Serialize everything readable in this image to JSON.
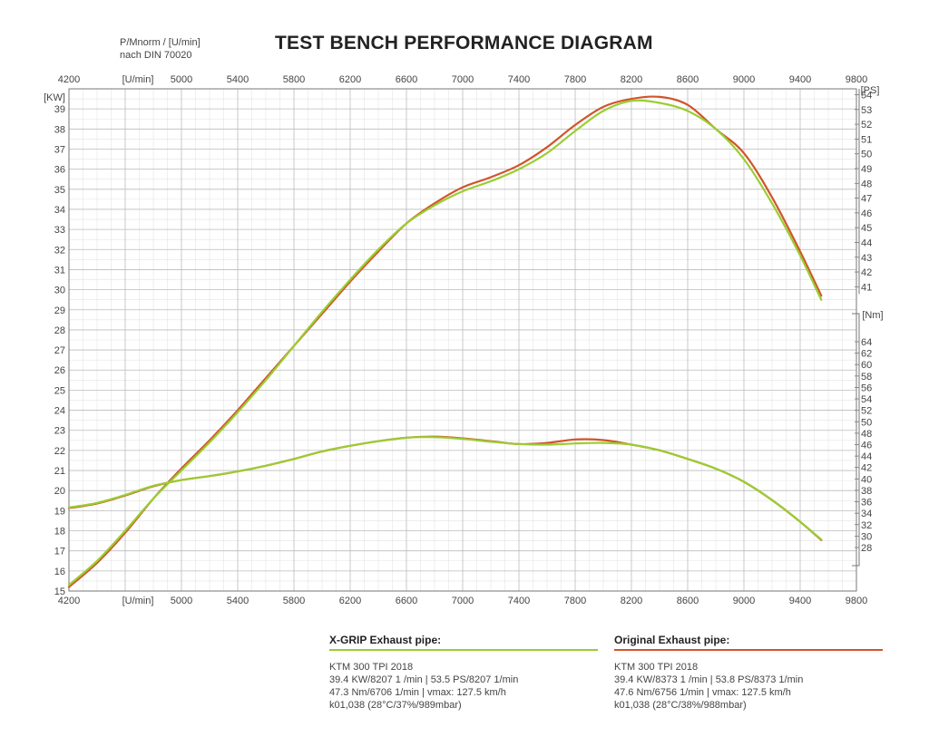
{
  "header": {
    "title": "TEST BENCH PERFORMANCE DIAGRAM",
    "unit_line1": "P/Mnorm / [U/min]",
    "unit_line2": "nach DIN 70020"
  },
  "colors": {
    "xgrip": "#9ACD32",
    "original": "#D2542A",
    "grid": "#BBBBBB",
    "frame": "#777777"
  },
  "chart_data": {
    "type": "line",
    "title": "TEST BENCH PERFORMANCE DIAGRAM",
    "xlabel": "[U/min]",
    "x_ticks": [
      4200,
      5000,
      5400,
      5800,
      6200,
      6600,
      7000,
      7400,
      7800,
      8200,
      8600,
      9000,
      9400,
      9800
    ],
    "xlim": [
      4200,
      9800
    ],
    "y_left": {
      "label": "[KW]",
      "ylim": [
        15,
        40
      ],
      "ticks": [
        15,
        16,
        17,
        18,
        19,
        20,
        21,
        22,
        23,
        24,
        25,
        26,
        27,
        28,
        29,
        30,
        31,
        32,
        33,
        34,
        35,
        36,
        37,
        38,
        39
      ]
    },
    "y_right_ps": {
      "label": "[PS]",
      "ticks": [
        41,
        42,
        43,
        44,
        45,
        46,
        47,
        48,
        49,
        50,
        51,
        52,
        53,
        54
      ]
    },
    "y_right_nm": {
      "label": "[Nm]",
      "ticks": [
        28,
        30,
        32,
        34,
        36,
        38,
        40,
        42,
        44,
        46,
        48,
        50,
        52,
        54,
        56,
        58,
        60,
        62,
        64
      ]
    },
    "grid": true,
    "series": [
      {
        "name": "X-GRIP Exhaust pipe power",
        "group": "xgrip",
        "axis": "kw",
        "x": [
          4200,
          4400,
          4600,
          4800,
          5000,
          5200,
          5400,
          5600,
          5800,
          6000,
          6200,
          6400,
          6600,
          6800,
          7000,
          7200,
          7400,
          7600,
          7800,
          8000,
          8200,
          8400,
          8600,
          8800,
          9000,
          9200,
          9400,
          9550
        ],
        "y": [
          15.3,
          16.5,
          18.0,
          19.6,
          21.0,
          22.4,
          23.9,
          25.5,
          27.2,
          28.9,
          30.5,
          32.0,
          33.3,
          34.2,
          34.9,
          35.4,
          36.0,
          36.8,
          37.9,
          38.9,
          39.4,
          39.3,
          38.9,
          38.0,
          36.5,
          34.3,
          31.7,
          29.5
        ]
      },
      {
        "name": "Original Exhaust pipe power",
        "group": "original",
        "axis": "kw",
        "x": [
          4200,
          4400,
          4600,
          4800,
          5000,
          5200,
          5400,
          5600,
          5800,
          6000,
          6200,
          6400,
          6600,
          6800,
          7000,
          7200,
          7400,
          7600,
          7800,
          8000,
          8200,
          8400,
          8600,
          8800,
          9000,
          9200,
          9400,
          9550
        ],
        "y": [
          15.2,
          16.4,
          17.9,
          19.6,
          21.1,
          22.5,
          24.0,
          25.6,
          27.2,
          28.8,
          30.4,
          31.9,
          33.3,
          34.3,
          35.1,
          35.6,
          36.2,
          37.1,
          38.2,
          39.1,
          39.5,
          39.6,
          39.2,
          38.0,
          36.8,
          34.6,
          31.9,
          29.7
        ]
      },
      {
        "name": "X-GRIP Exhaust pipe torque",
        "group": "xgrip",
        "axis": "nm",
        "x": [
          4200,
          4400,
          4600,
          4800,
          5000,
          5200,
          5400,
          5600,
          5800,
          6000,
          6200,
          6400,
          6600,
          6800,
          7000,
          7200,
          7400,
          7600,
          7800,
          8000,
          8200,
          8400,
          8600,
          8800,
          9000,
          9200,
          9400,
          9550
        ],
        "y": [
          35.0,
          35.8,
          37.2,
          38.8,
          39.8,
          40.5,
          41.3,
          42.3,
          43.5,
          44.8,
          45.8,
          46.6,
          47.2,
          47.3,
          47.0,
          46.5,
          46.1,
          46.0,
          46.2,
          46.3,
          46.0,
          45.0,
          43.5,
          41.8,
          39.5,
          36.3,
          32.5,
          29.4
        ]
      },
      {
        "name": "Original Exhaust pipe torque",
        "group": "original",
        "axis": "nm",
        "x": [
          4200,
          4400,
          4600,
          4800,
          5000,
          5200,
          5400,
          5600,
          5800,
          6000,
          6200,
          6400,
          6600,
          6800,
          7000,
          7200,
          7400,
          7600,
          7800,
          8000,
          8200,
          8400,
          8600,
          8800,
          9000,
          9200,
          9400,
          9550
        ],
        "y": [
          34.9,
          35.7,
          37.1,
          38.7,
          39.8,
          40.5,
          41.3,
          42.3,
          43.5,
          44.8,
          45.8,
          46.6,
          47.2,
          47.4,
          47.1,
          46.6,
          46.1,
          46.3,
          46.9,
          46.8,
          46.0,
          45.0,
          43.5,
          41.8,
          39.5,
          36.3,
          32.5,
          29.3
        ]
      }
    ]
  },
  "legend": {
    "xgrip": {
      "title": "X-GRIP Exhaust pipe:",
      "lines": [
        "KTM 300 TPI 2018",
        "39.4 KW/8207 1 /min | 53.5 PS/8207 1/min",
        "47.3 Nm/6706 1/min | vmax: 127.5 km/h",
        "k01,038 (28°C/37%/989mbar)"
      ]
    },
    "original": {
      "title": "Original Exhaust pipe:",
      "lines": [
        "KTM 300 TPI 2018",
        "39.4 KW/8373 1 /min | 53.8 PS/8373 1/min",
        "47.6 Nm/6756 1/min | vmax: 127.5 km/h",
        "k01,038 (28°C/38%/988mbar)"
      ]
    }
  }
}
